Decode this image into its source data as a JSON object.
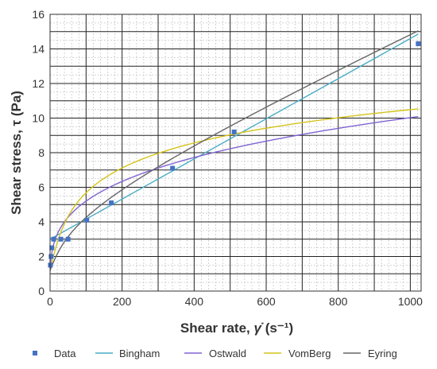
{
  "chart_data": {
    "type": "scatter",
    "xlabel_main": "Shear rate, ",
    "xlabel_symbol": "γ̇",
    "xlabel_unit": " (s⁻¹)",
    "ylabel": "Shear stress, τ (Pa)",
    "xlim": [
      0,
      1030
    ],
    "ylim": [
      0,
      16
    ],
    "x_ticks": [
      0,
      200,
      400,
      600,
      800,
      1000
    ],
    "y_ticks": [
      0,
      2,
      4,
      6,
      8,
      10,
      12,
      14,
      16
    ],
    "grid": true,
    "legend_position": "bottom",
    "data_points": {
      "name": "Data",
      "color": "#4472C4",
      "points": [
        [
          1,
          1.5
        ],
        [
          3,
          2.0
        ],
        [
          5,
          2.5
        ],
        [
          10,
          3.0
        ],
        [
          30,
          3.0
        ],
        [
          50,
          3.0
        ],
        [
          102,
          4.1
        ],
        [
          170,
          5.1
        ],
        [
          340,
          7.1
        ],
        [
          511,
          9.2
        ],
        [
          1022,
          14.3
        ]
      ]
    },
    "series": [
      {
        "name": "Bingham",
        "color": "#4BACC6",
        "model": "bingham",
        "params": {
          "tau0": 3.0,
          "k": 0.0116
        }
      },
      {
        "name": "Ostwald",
        "color": "#8064D2",
        "model": "power",
        "params": {
          "k": 1.4,
          "n": 0.285
        }
      },
      {
        "name": "VomBerg",
        "color": "#D4C41A",
        "model": "vomberg",
        "params": {
          "a": 2.1,
          "b": 1.2,
          "c": 24
        }
      },
      {
        "name": "Eyring",
        "color": "#666666",
        "model": "eyring",
        "params": {
          "a": 0.0092,
          "b": 1.2,
          "c": 24
        }
      }
    ]
  }
}
